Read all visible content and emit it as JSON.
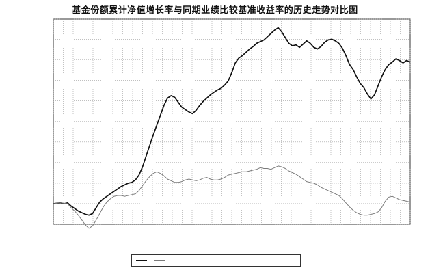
{
  "chart_data": {
    "type": "line",
    "title": "基金份额累计净值增长率与同期业绩比较基准收益率的历史走势对比图",
    "xlabel": "",
    "ylabel": "",
    "y_unit": "%",
    "ylim": [
      -2.51,
      22.55
    ],
    "y_ticks": [
      -2.51,
      0.0,
      2.51,
      5.02,
      7.53,
      10.04,
      12.55,
      15.06,
      17.57,
      20.08,
      22.55
    ],
    "y_tick_labels": [
      "",
      "",
      "",
      "",
      "",
      "",
      "",
      "",
      "",
      "",
      ""
    ],
    "x_tick_labels": [
      "",
      "",
      "",
      "",
      "",
      "",
      "",
      "",
      "",
      "",
      "",
      "",
      "",
      "",
      "",
      "",
      "",
      "",
      "",
      "",
      "",
      "",
      "",
      "",
      "",
      "",
      "",
      "",
      "",
      "",
      "",
      "",
      "",
      "",
      "",
      "",
      ""
    ],
    "x": [
      0,
      1,
      2,
      3,
      4,
      5,
      6,
      7,
      8,
      9,
      10,
      11,
      12,
      13,
      14,
      15,
      16,
      17,
      18,
      19,
      20,
      21,
      22,
      23,
      24,
      25,
      26,
      27,
      28,
      29,
      30,
      31,
      32,
      33,
      34,
      35,
      36,
      37,
      38,
      39,
      40,
      41,
      42,
      43,
      44,
      45,
      46,
      47,
      48,
      49,
      50,
      51,
      52,
      53,
      54,
      55,
      56,
      57,
      58,
      59,
      60,
      61,
      62,
      63,
      64,
      65,
      66,
      67,
      68,
      69,
      70,
      71,
      72,
      73,
      74,
      75,
      76,
      77,
      78,
      79,
      80,
      81,
      82,
      83,
      84,
      85,
      86,
      87,
      88,
      89,
      90,
      91,
      92,
      93,
      94,
      95,
      96,
      97,
      98,
      99,
      100
    ],
    "grid": true,
    "legend_position": "bottom-center",
    "series": [
      {
        "name": "",
        "color": "#111111",
        "values": [
          0.0,
          0.05,
          0.1,
          0.0,
          0.1,
          -0.3,
          -0.6,
          -0.9,
          -1.1,
          -1.3,
          -1.4,
          -1.2,
          -0.5,
          0.2,
          0.6,
          0.9,
          1.2,
          1.5,
          1.8,
          2.1,
          2.3,
          2.5,
          2.6,
          2.9,
          3.5,
          4.5,
          5.8,
          7.1,
          8.4,
          9.6,
          10.8,
          12.0,
          12.9,
          13.2,
          13.0,
          12.4,
          11.8,
          11.5,
          11.2,
          11.0,
          11.4,
          12.0,
          12.5,
          12.9,
          13.3,
          13.6,
          13.9,
          14.1,
          14.5,
          15.0,
          16.0,
          17.2,
          17.8,
          18.1,
          18.5,
          18.9,
          19.2,
          19.6,
          19.8,
          20.0,
          20.4,
          20.8,
          21.2,
          21.5,
          21.0,
          20.3,
          19.6,
          19.3,
          19.4,
          19.1,
          19.5,
          19.9,
          19.6,
          19.1,
          18.9,
          19.2,
          19.7,
          20.0,
          20.1,
          19.9,
          19.6,
          19.0,
          18.1,
          17.0,
          16.4,
          15.5,
          14.7,
          14.2,
          13.4,
          12.8,
          13.3,
          14.4,
          15.5,
          16.4,
          17.0,
          17.3,
          17.7,
          17.5,
          17.2,
          17.5,
          17.3
        ]
      },
      {
        "name": "",
        "color": "#7a7a7a",
        "values": [
          0.0,
          0.05,
          0.1,
          0.05,
          0.0,
          -0.5,
          -0.9,
          -1.4,
          -2.0,
          -2.6,
          -3.0,
          -2.7,
          -2.0,
          -1.2,
          -0.4,
          0.2,
          0.6,
          0.9,
          1.0,
          1.0,
          0.9,
          1.0,
          1.1,
          1.2,
          1.6,
          2.2,
          2.8,
          3.3,
          3.7,
          3.9,
          3.7,
          3.4,
          3.0,
          2.8,
          2.6,
          2.6,
          2.7,
          2.9,
          3.0,
          2.9,
          2.8,
          2.9,
          3.1,
          3.2,
          3.0,
          2.9,
          2.9,
          3.0,
          3.2,
          3.5,
          3.6,
          3.7,
          3.8,
          3.9,
          3.9,
          4.0,
          4.1,
          4.2,
          4.4,
          4.3,
          4.3,
          4.2,
          4.4,
          4.6,
          4.5,
          4.3,
          4.0,
          3.8,
          3.6,
          3.3,
          3.0,
          2.7,
          2.6,
          2.5,
          2.3,
          2.0,
          1.8,
          1.6,
          1.4,
          1.2,
          1.0,
          0.6,
          0.1,
          -0.4,
          -0.8,
          -1.1,
          -1.3,
          -1.4,
          -1.4,
          -1.3,
          -1.2,
          -1.0,
          -0.5,
          0.3,
          0.8,
          0.9,
          0.7,
          0.5,
          0.4,
          0.3,
          0.2
        ]
      }
    ]
  }
}
